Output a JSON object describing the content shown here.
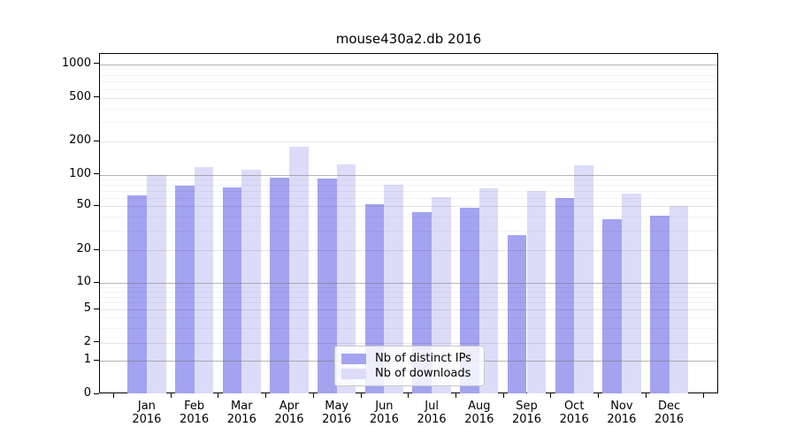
{
  "title": "mouse430a2.db 2016",
  "colors": {
    "ips_bar": "#a3a3f0",
    "downloads_bar": "#dcdcf9",
    "grid_major": "#b5b5b5",
    "grid_mid": "#e2e2e2",
    "grid_minor": "#f0f0f0",
    "axis": "#000000"
  },
  "y_axis": {
    "tick_labels": [
      "0",
      "1",
      "2",
      "5",
      "10",
      "20",
      "50",
      "100",
      "200",
      "500",
      "1000"
    ],
    "tick_values": [
      0,
      1,
      2,
      5,
      10,
      20,
      50,
      100,
      200,
      500,
      1000
    ]
  },
  "x_axis": {
    "months": [
      "Jan",
      "Feb",
      "Mar",
      "Apr",
      "May",
      "Jun",
      "Jul",
      "Aug",
      "Sep",
      "Oct",
      "Nov",
      "Dec"
    ],
    "year": "2016"
  },
  "legend": {
    "items": [
      {
        "label": "Nb of distinct IPs",
        "color_key": "ips_bar"
      },
      {
        "label": "Nb of downloads",
        "color_key": "downloads_bar"
      }
    ]
  },
  "chart_data": {
    "type": "bar",
    "title": "mouse430a2.db 2016",
    "categories": [
      "Jan 2016",
      "Feb 2016",
      "Mar 2016",
      "Apr 2016",
      "May 2016",
      "Jun 2016",
      "Jul 2016",
      "Aug 2016",
      "Sep 2016",
      "Oct 2016",
      "Nov 2016",
      "Dec 2016"
    ],
    "series": [
      {
        "name": "Nb of distinct IPs",
        "values": [
          62,
          77,
          74,
          92,
          90,
          51,
          43,
          47,
          27,
          59,
          37,
          40
        ]
      },
      {
        "name": "Nb of downloads",
        "values": [
          97,
          115,
          109,
          177,
          122,
          78,
          60,
          72,
          68,
          120,
          65,
          49
        ]
      }
    ],
    "yscale": "log",
    "yticks": [
      0,
      1,
      2,
      5,
      10,
      20,
      50,
      100,
      200,
      500,
      1000
    ],
    "ylim": [
      0,
      1200
    ],
    "grid": true,
    "legend_position": "inside-bottom-center"
  }
}
